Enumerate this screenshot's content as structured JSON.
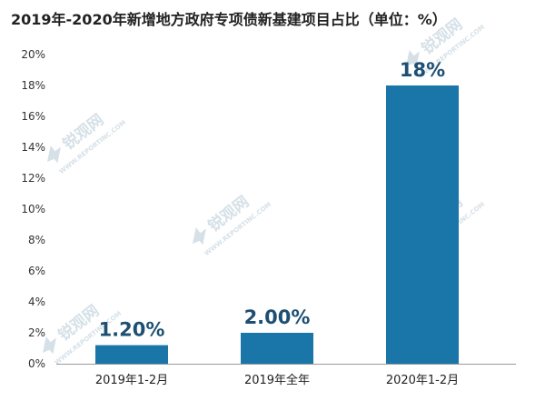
{
  "title": "2019年-2020年新增地方政府专项债新基建项目占比（单位：%）",
  "watermark": {
    "brand": "锐观网",
    "url": "WWW.REPORTINC.COM",
    "color": "#c7d6e0"
  },
  "colors": {
    "bar": "#1a75a8",
    "data_label": "#1d4f73",
    "axis": "#999999"
  },
  "chart_data": {
    "type": "bar",
    "title": "2019年-2020年新增地方政府专项债新基建项目占比（单位：%）",
    "xlabel": "",
    "ylabel": "",
    "categories": [
      "2019年1-2月",
      "2019年全年",
      "2020年1-2月"
    ],
    "values": [
      1.2,
      2.0,
      18
    ],
    "data_labels": [
      "1.20%",
      "2.00%",
      "18%"
    ],
    "ylim": [
      0,
      20
    ],
    "yticks": [
      0,
      2,
      4,
      6,
      8,
      10,
      12,
      14,
      16,
      18,
      20
    ],
    "ytick_labels": [
      "0%",
      "2%",
      "4%",
      "6%",
      "8%",
      "10%",
      "12%",
      "14%",
      "16%",
      "18%",
      "20%"
    ],
    "grid": false,
    "legend": "none"
  }
}
